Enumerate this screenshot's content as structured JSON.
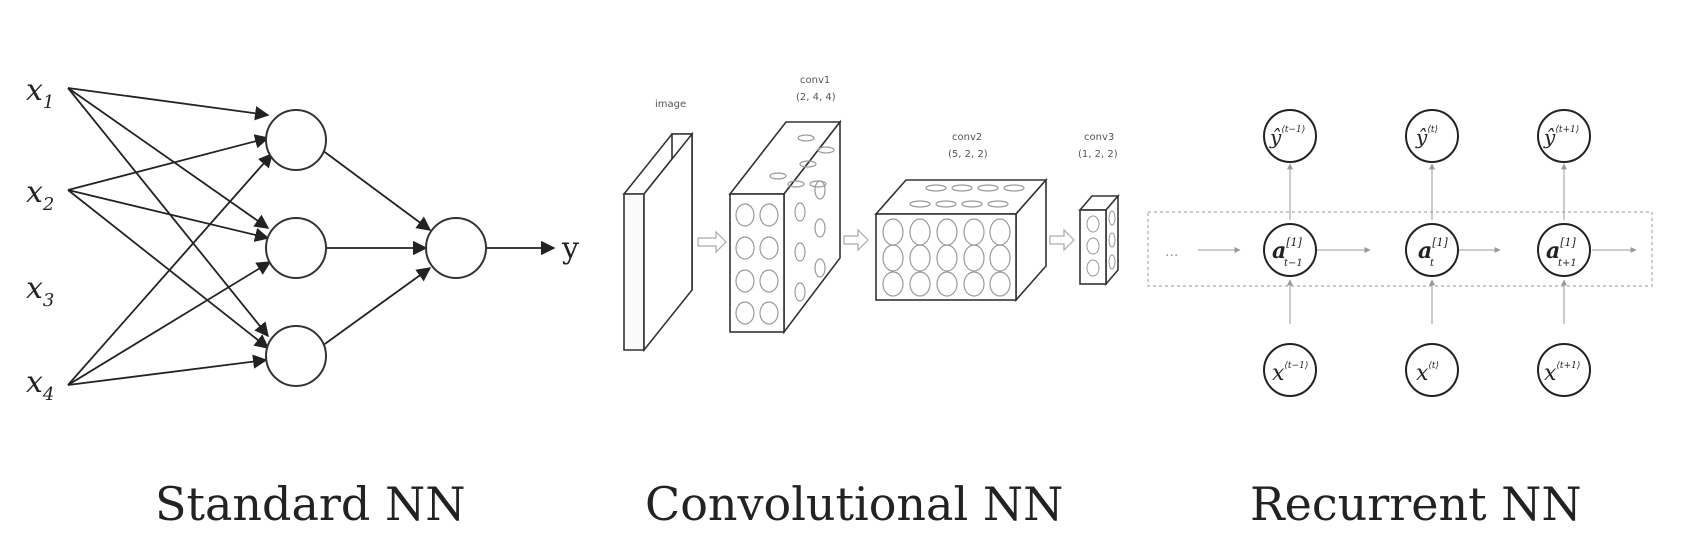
{
  "standard_nn": {
    "caption": "Standard NN",
    "inputs": [
      {
        "base": "x",
        "sub": "1"
      },
      {
        "base": "x",
        "sub": "2"
      },
      {
        "base": "x",
        "sub": "3"
      },
      {
        "base": "x",
        "sub": "4"
      }
    ],
    "output_label": "y"
  },
  "conv_nn": {
    "caption": "Convolutional NN",
    "image_label": "image",
    "conv1_label": "conv1",
    "conv1_dims": "(2, 4, 4)",
    "conv2_label": "conv2",
    "conv2_dims": "(5, 2, 2)",
    "conv3_label": "conv3",
    "conv3_dims": "(1, 2, 2)"
  },
  "recurrent_nn": {
    "caption": "Recurrent NN",
    "outputs": [
      {
        "base": "ŷ",
        "sup": "⟨t−1⟩"
      },
      {
        "base": "ŷ",
        "sup": "⟨t⟩"
      },
      {
        "base": "ŷ",
        "sup": "⟨t+1⟩"
      }
    ],
    "hidden": [
      {
        "base": "a",
        "sup": "[1]",
        "sub": "t−1"
      },
      {
        "base": "a",
        "sup": "[1]",
        "sub": "t"
      },
      {
        "base": "a",
        "sup": "[1]",
        "sub": "t+1"
      }
    ],
    "inputs": [
      {
        "base": "x",
        "sup": "⟨t−1⟩"
      },
      {
        "base": "x",
        "sup": "⟨t⟩"
      },
      {
        "base": "x",
        "sup": "⟨t+1⟩"
      }
    ],
    "ellipsis": "..."
  },
  "colors": {
    "stroke": "#222222",
    "light": "#999999",
    "background": "#ffffff"
  }
}
